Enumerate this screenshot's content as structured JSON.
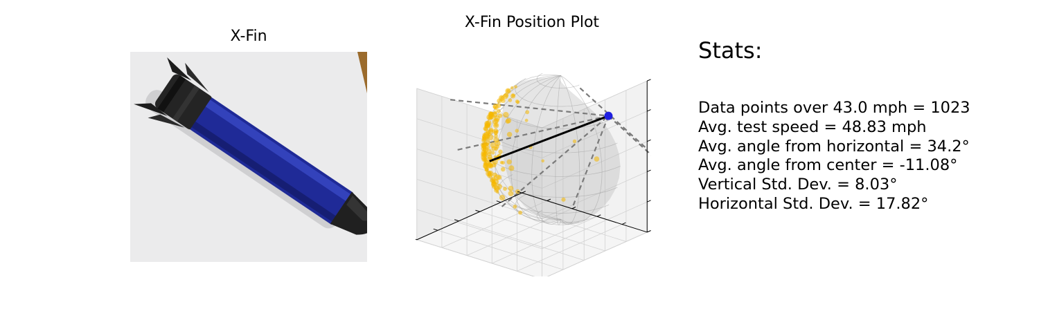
{
  "photo": {
    "title": "X-Fin",
    "colors": {
      "background": "#e6e6e8",
      "body": "#202c9a",
      "fins": "#232323",
      "wood": "#9b6b2c"
    }
  },
  "stats": {
    "heading": "Stats:",
    "lines": [
      "Data points over 43.0 mph = 1023",
      "Avg. test speed = 48.83 mph",
      "Avg. angle from horizontal = 34.2°",
      "Avg. angle from center = -11.08°",
      "Vertical Std. Dev. = 8.03°",
      "Horizontal Std. Dev. = 17.82°"
    ]
  },
  "chart_data": {
    "type": "scatter",
    "projection": "3d",
    "title": "X-Fin Position Plot",
    "xlabel": "",
    "ylabel": "",
    "zlabel": "",
    "grid": true,
    "tick_labels": false,
    "colors": {
      "points": "#f5b800",
      "mean_marker": "#1f1fe0",
      "mean_line": "#000000",
      "surface": "#b4b4b4",
      "guides": "#7a7a7a"
    },
    "series": [
      {
        "name": "",
        "point_count": 1023
      }
    ],
    "mean_direction": {
      "angle_from_horizontal_deg": 34.2,
      "angle_from_center_deg": -11.08
    },
    "spread_deg": {
      "vertical": 8.03,
      "horizontal": 17.82
    }
  }
}
